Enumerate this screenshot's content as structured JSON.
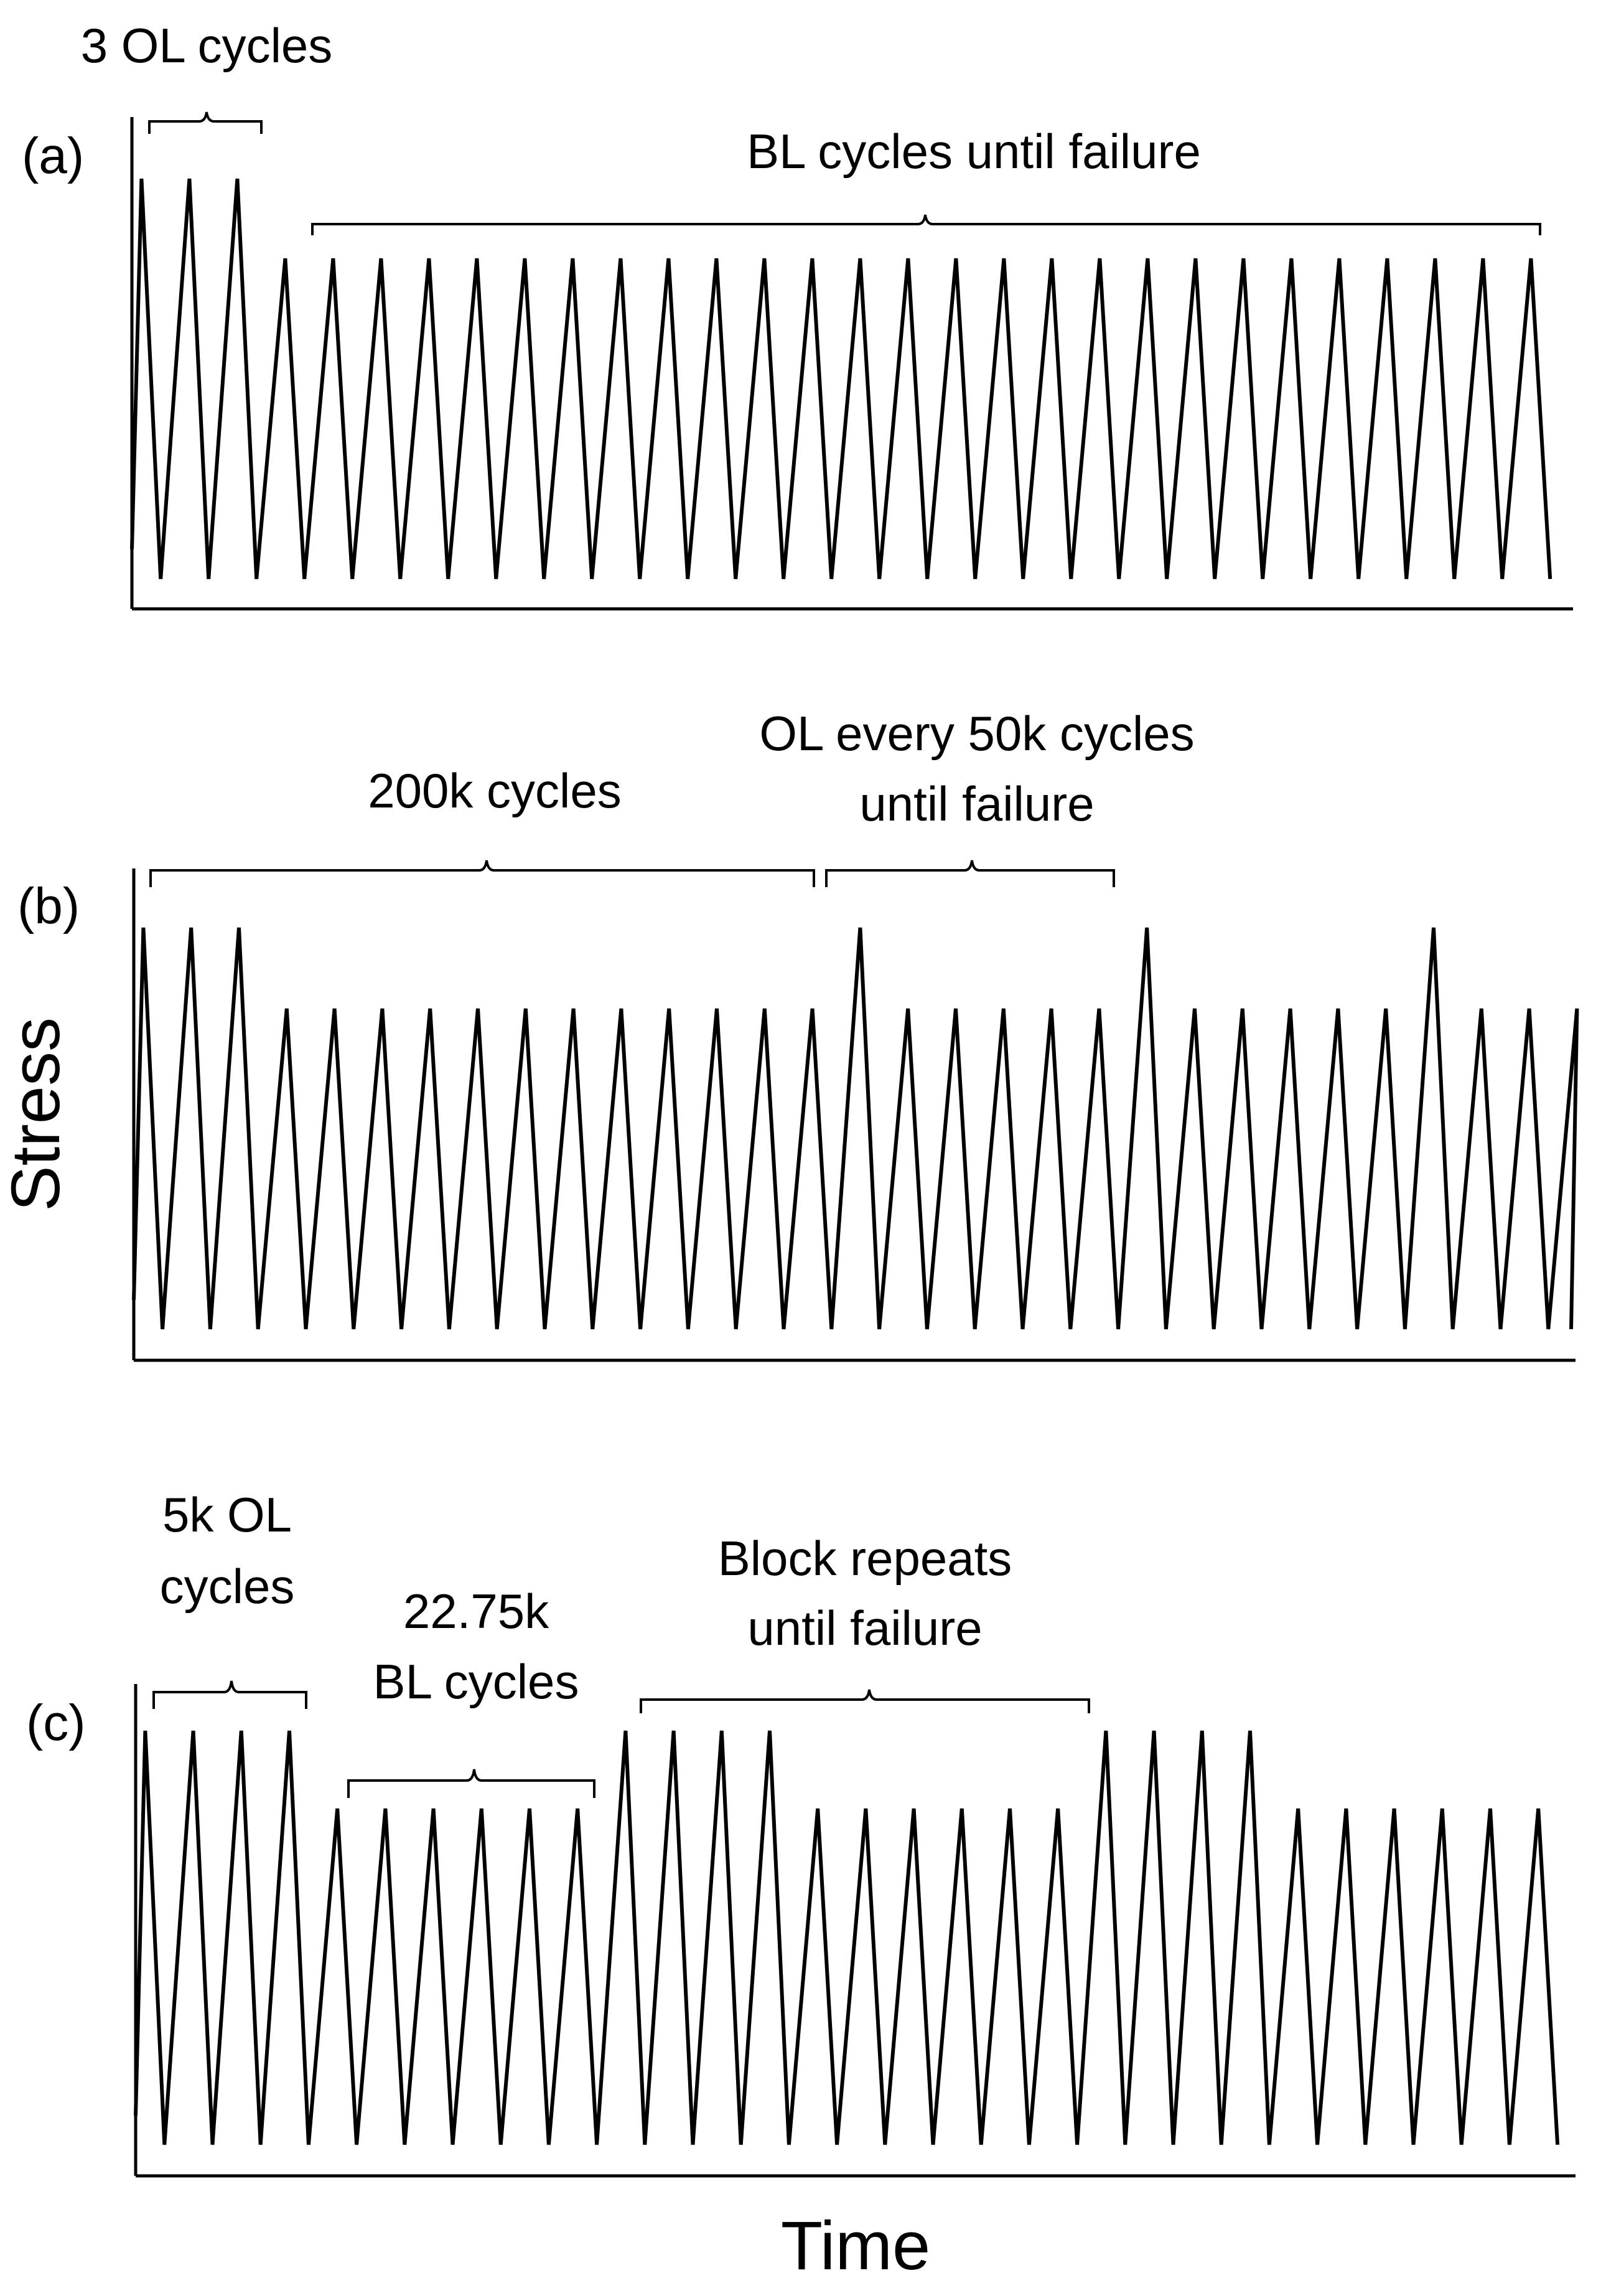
{
  "y_axis_label": "Stress",
  "x_axis_label": "Time",
  "panels": [
    {
      "panel_label": "(a)",
      "annotations": [
        "3 OL cycles",
        "BL cycles until failure"
      ],
      "cycle_sequence": [
        "OL",
        "OL",
        "OL",
        "BL",
        "BL",
        "BL",
        "BL",
        "BL",
        "BL",
        "BL",
        "BL",
        "BL",
        "BL",
        "BL",
        "BL",
        "BL",
        "BL",
        "BL",
        "BL",
        "BL",
        "BL",
        "BL",
        "BL",
        "BL",
        "BL",
        "BL",
        "BL",
        "BL",
        "BL",
        "BL"
      ]
    },
    {
      "panel_label": "(b)",
      "annotations": [
        "200k cycles",
        "OL every 50k cycles",
        "until failure"
      ],
      "cycle_sequence": [
        "OL",
        "OL",
        "OL",
        "BL",
        "BL",
        "BL",
        "BL",
        "BL",
        "BL",
        "BL",
        "BL",
        "BL",
        "BL",
        "BL",
        "BL",
        "OL",
        "BL",
        "BL",
        "BL",
        "BL",
        "BL",
        "OL",
        "BL",
        "BL",
        "BL",
        "BL",
        "BL",
        "OL",
        "BL",
        "BL",
        "BL"
      ]
    },
    {
      "panel_label": "(c)",
      "annotations": [
        "5k OL",
        "cycles",
        "22.75k",
        "BL cycles",
        "Block repeats",
        "until failure"
      ],
      "cycle_sequence": [
        "OL",
        "OL",
        "OL",
        "OL",
        "BL",
        "BL",
        "BL",
        "BL",
        "BL",
        "BL",
        "OL",
        "OL",
        "OL",
        "OL",
        "BL",
        "BL",
        "BL",
        "BL",
        "BL",
        "BL",
        "OL",
        "OL",
        "OL",
        "OL",
        "BL",
        "BL",
        "BL",
        "BL",
        "BL",
        "BL"
      ]
    }
  ],
  "colors": {
    "line": "#000000",
    "background": "#ffffff"
  }
}
